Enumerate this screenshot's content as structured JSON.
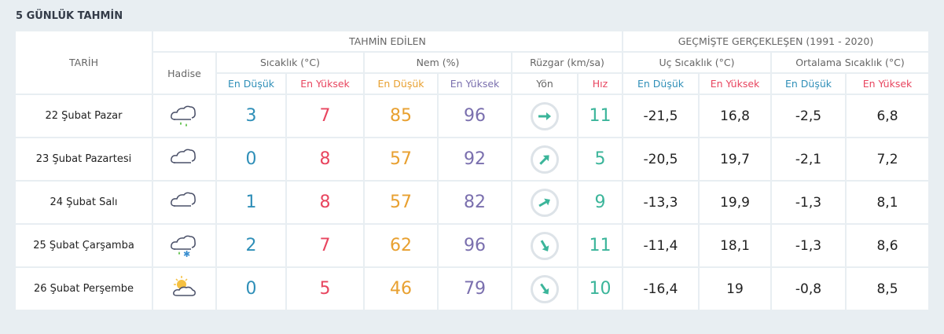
{
  "title": "5 GÜNLÜK TAHMİN",
  "headers": {
    "date": "TARİH",
    "forecast": "TAHMİN EDİLEN",
    "history": "GEÇMİŞTE GERÇEKLEŞEN (1991 - 2020)",
    "event": "Hadise",
    "temp": "Sıcaklık (°C)",
    "humidity": "Nem (%)",
    "wind": "Rüzgar (km/sa)",
    "extreme": "Uç Sıcaklık (°C)",
    "average": "Ortalama Sıcaklık (°C)",
    "low": "En Düşük",
    "high": "En Yüksek",
    "dir": "Yön",
    "speed": "Hız"
  },
  "colors": {
    "low": "#2f8fb8",
    "high": "#e8455f",
    "hum_low": "#e8a030",
    "hum_high": "#7a6fae",
    "wind": "#3bb59a"
  },
  "rows": [
    {
      "date": "22 Şubat Pazar",
      "icon": "cloud-rain-icon",
      "tmin": "3",
      "tmax": "7",
      "hmin": "85",
      "hmax": "96",
      "wind_dir_deg": 0,
      "speed": "11",
      "xmin": "-21,5",
      "xmax": "16,8",
      "amin": "-2,5",
      "amax": "6,8"
    },
    {
      "date": "23 Şubat Pazartesi",
      "icon": "cloud-icon",
      "tmin": "0",
      "tmax": "8",
      "hmin": "57",
      "hmax": "92",
      "wind_dir_deg": -45,
      "speed": "5",
      "xmin": "-20,5",
      "xmax": "19,7",
      "amin": "-2,1",
      "amax": "7,2"
    },
    {
      "date": "24 Şubat Salı",
      "icon": "cloud-icon",
      "tmin": "1",
      "tmax": "8",
      "hmin": "57",
      "hmax": "82",
      "wind_dir_deg": -30,
      "speed": "9",
      "xmin": "-13,3",
      "xmax": "19,9",
      "amin": "-1,3",
      "amax": "8,1"
    },
    {
      "date": "25 Şubat Çarşamba",
      "icon": "cloud-sleet-icon",
      "tmin": "2",
      "tmax": "7",
      "hmin": "62",
      "hmax": "96",
      "wind_dir_deg": 60,
      "speed": "11",
      "xmin": "-11,4",
      "xmax": "18,1",
      "amin": "-1,3",
      "amax": "8,6"
    },
    {
      "date": "26 Şubat Perşembe",
      "icon": "partly-cloudy-icon",
      "tmin": "0",
      "tmax": "5",
      "hmin": "46",
      "hmax": "79",
      "wind_dir_deg": 55,
      "speed": "10",
      "xmin": "-16,4",
      "xmax": "19",
      "amin": "-0,8",
      "amax": "8,5"
    }
  ]
}
